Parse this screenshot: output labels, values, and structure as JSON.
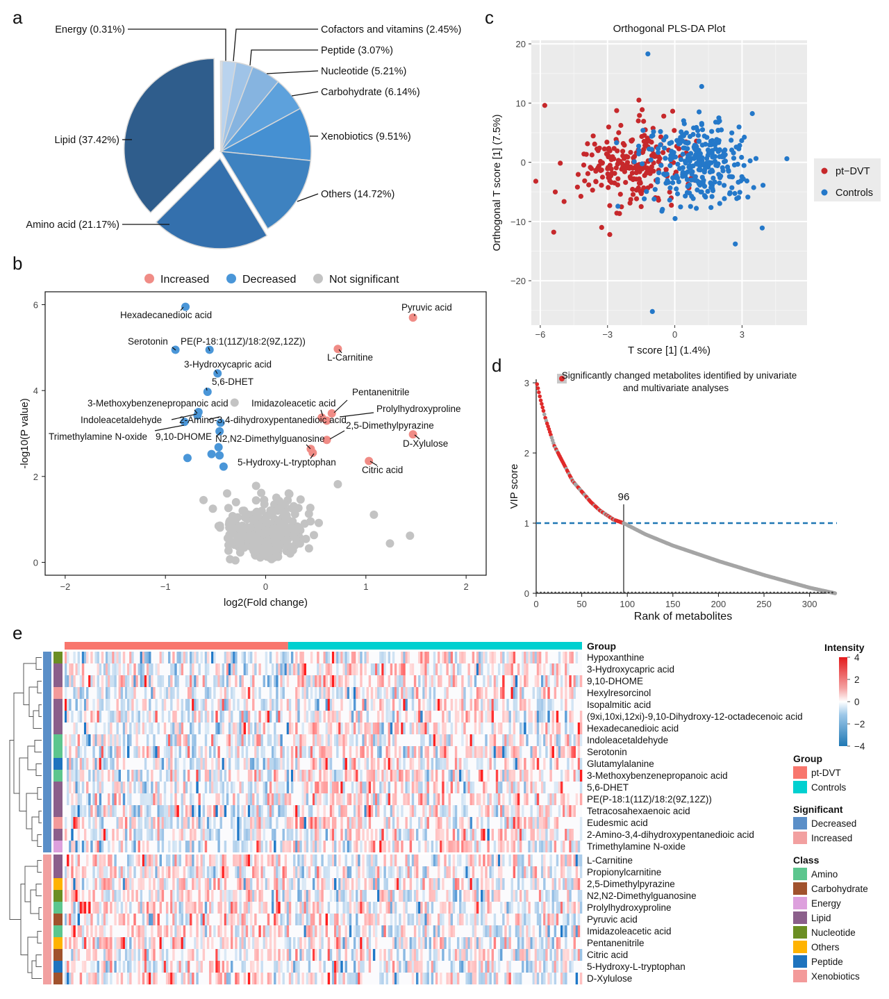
{
  "panel_letters": [
    "a",
    "b",
    "c",
    "d",
    "e"
  ],
  "chart_data": [
    {
      "panel": "a",
      "type": "pie",
      "slices": [
        {
          "label": "Lipid (37.42%)",
          "value": 37.42,
          "color": "#2f5d8c",
          "exploded": true
        },
        {
          "label": "Amino acid (21.17%)",
          "value": 21.17,
          "color": "#3470ad",
          "exploded": true
        },
        {
          "label": "Others (14.72%)",
          "value": 14.72,
          "color": "#3e82c0"
        },
        {
          "label": "Xenobiotics (9.51%)",
          "value": 9.51,
          "color": "#4590d2"
        },
        {
          "label": "Carbohydrate (6.14%)",
          "value": 6.14,
          "color": "#5da1dc"
        },
        {
          "label": "Nucleotide (5.21%)",
          "value": 5.21,
          "color": "#86b4e0"
        },
        {
          "label": "Peptide (3.07%)",
          "value": 3.07,
          "color": "#9fc3e7"
        },
        {
          "label": "Cofactors and vitamins (2.45%)",
          "value": 2.45,
          "color": "#b9d3ee"
        },
        {
          "label": "Energy (0.31%)",
          "value": 0.31,
          "color": "#d5e4f5"
        }
      ]
    },
    {
      "panel": "b",
      "type": "scatter",
      "xlabel": "log2(Fold change)",
      "ylabel": "-log10(P value)",
      "xlim": [
        -2.2,
        2.2
      ],
      "ylim": [
        -0.3,
        6.3
      ],
      "xticks": [
        -2,
        -1,
        0,
        1,
        2
      ],
      "yticks": [
        0,
        2,
        4,
        6
      ],
      "legend": [
        {
          "name": "Increased",
          "color": "#f08c86"
        },
        {
          "name": "Decreased",
          "color": "#4a96d8"
        },
        {
          "name": "Not significant",
          "color": "#c3c3c3"
        }
      ],
      "points": [
        {
          "name": "Hexadecanedioic acid",
          "x": -0.8,
          "y": 5.95,
          "group": "Decreased"
        },
        {
          "name": "Serotonin",
          "x": -0.9,
          "y": 4.95,
          "group": "Decreased"
        },
        {
          "name": "PE(P-18:1(11Z)/18:2(9Z,12Z))",
          "x": -0.56,
          "y": 4.95,
          "group": "Decreased"
        },
        {
          "name": "3-Hydroxycapric acid",
          "x": -0.48,
          "y": 4.4,
          "group": "Decreased"
        },
        {
          "name": "5,6-DHET",
          "x": -0.58,
          "y": 3.97,
          "group": "Decreased"
        },
        {
          "name": "3-Methoxybenzenepropanoic acid",
          "x": -0.67,
          "y": 3.5,
          "group": "Decreased"
        },
        {
          "name": "Indoleacetaldehyde",
          "x": -0.68,
          "y": 3.42,
          "group": "Decreased"
        },
        {
          "name": "2-Amino-3,4-dihydroxypentanedioic acid",
          "x": -0.45,
          "y": 3.25,
          "group": "Decreased"
        },
        {
          "name": "Trimethylamine N-oxide",
          "x": -0.81,
          "y": 3.27,
          "group": "Decreased"
        },
        {
          "name": "9,10-DHOME",
          "x": -0.46,
          "y": 3.05,
          "group": "Decreased"
        },
        {
          "name": "",
          "x": -0.47,
          "y": 2.68,
          "group": "Decreased"
        },
        {
          "name": "",
          "x": -0.54,
          "y": 2.52,
          "group": "Decreased"
        },
        {
          "name": "",
          "x": -0.46,
          "y": 2.49,
          "group": "Decreased"
        },
        {
          "name": "",
          "x": -0.78,
          "y": 2.43,
          "group": "Decreased"
        },
        {
          "name": "",
          "x": -0.42,
          "y": 2.23,
          "group": "Decreased"
        },
        {
          "name": "Pyruvic acid",
          "x": 1.47,
          "y": 5.7,
          "group": "Increased"
        },
        {
          "name": "L-Carnitine",
          "x": 0.72,
          "y": 4.97,
          "group": "Increased"
        },
        {
          "name": "Pentanenitrile",
          "x": 0.66,
          "y": 3.47,
          "group": "Increased"
        },
        {
          "name": "Imidazoleacetic acid",
          "x": 0.56,
          "y": 3.37,
          "group": "Increased"
        },
        {
          "name": "Prolylhydroxyproline",
          "x": 0.61,
          "y": 3.3,
          "group": "Increased"
        },
        {
          "name": "2,5-Dimethylpyrazine",
          "x": 0.61,
          "y": 2.85,
          "group": "Increased"
        },
        {
          "name": "D-Xylulose",
          "x": 1.47,
          "y": 2.98,
          "group": "Increased"
        },
        {
          "name": "N2,N2-Dimethylguanosine",
          "x": 0.45,
          "y": 2.64,
          "group": "Increased"
        },
        {
          "name": "5-Hydroxy-L-tryptophan",
          "x": 0.47,
          "y": 2.55,
          "group": "Increased"
        },
        {
          "name": "Citric acid",
          "x": 1.03,
          "y": 2.36,
          "group": "Increased"
        }
      ],
      "not_significant_count": 300,
      "not_significant_extremes": [
        {
          "x": 1.08,
          "y": 1.11
        },
        {
          "x": 1.24,
          "y": 0.44
        },
        {
          "x": 1.44,
          "y": 0.62
        },
        {
          "x": -0.31,
          "y": 3.72
        },
        {
          "x": 0.72,
          "y": 1.82
        },
        {
          "x": -0.62,
          "y": 1.45
        }
      ]
    },
    {
      "panel": "c",
      "type": "scatter",
      "title": "Orthogonal PLS-DA Plot",
      "xlabel": "T score [1] (1.4%)",
      "ylabel": "Orthogonal T score [1] (7.5%)",
      "xlim": [
        -6.4,
        5.9
      ],
      "ylim": [
        -27.5,
        20.6
      ],
      "xticks": [
        -6,
        -3,
        0,
        3
      ],
      "yticks": [
        -20,
        -10,
        0,
        10,
        20
      ],
      "legend": [
        {
          "name": "pt−DVT",
          "color": "#c6282b"
        },
        {
          "name": "Controls",
          "color": "#2478c9"
        }
      ],
      "series_counts": {
        "pt−DVT": 230,
        "Controls": 290
      },
      "notable_points": [
        {
          "group": "Controls",
          "x": -1.2,
          "y": 18.3
        },
        {
          "group": "Controls",
          "x": 1.2,
          "y": 12.8
        },
        {
          "group": "Controls",
          "x": -1.0,
          "y": -25.2
        },
        {
          "group": "Controls",
          "x": 5.0,
          "y": 0.6
        },
        {
          "group": "Controls",
          "x": 3.9,
          "y": -11.1
        },
        {
          "group": "Controls",
          "x": 2.7,
          "y": -13.8
        },
        {
          "group": "pt−DVT",
          "x": -5.8,
          "y": 9.6
        },
        {
          "group": "pt−DVT",
          "x": -6.2,
          "y": -3.2
        },
        {
          "group": "pt−DVT",
          "x": -5.4,
          "y": -11.8
        },
        {
          "group": "pt−DVT",
          "x": -2.9,
          "y": -12.2
        },
        {
          "group": "pt−DVT",
          "x": -1.6,
          "y": 10.5
        }
      ]
    },
    {
      "panel": "d",
      "type": "scatter",
      "xlabel": "Rank of metabolites",
      "ylabel": "VIP score",
      "xlim": [
        0,
        330
      ],
      "ylim": [
        0,
        3.05
      ],
      "xticks": [
        0,
        50,
        100,
        150,
        200,
        250,
        300
      ],
      "yticks": [
        0,
        1,
        2,
        3
      ],
      "n": 328,
      "threshold": 1,
      "cutoff_rank": 96,
      "cutoff_label": "96",
      "legend": [
        {
          "name": "Significantly changed metabolites identified by univariate and multivariate analyses",
          "color": "#e02a2a"
        }
      ],
      "curve_anchor_points": [
        {
          "x": 1,
          "y": 2.98
        },
        {
          "x": 5,
          "y": 2.75
        },
        {
          "x": 10,
          "y": 2.5
        },
        {
          "x": 20,
          "y": 2.1
        },
        {
          "x": 30,
          "y": 1.85
        },
        {
          "x": 40,
          "y": 1.6
        },
        {
          "x": 50,
          "y": 1.45
        },
        {
          "x": 60,
          "y": 1.3
        },
        {
          "x": 70,
          "y": 1.18
        },
        {
          "x": 85,
          "y": 1.05
        },
        {
          "x": 96,
          "y": 1.0
        },
        {
          "x": 120,
          "y": 0.84
        },
        {
          "x": 150,
          "y": 0.68
        },
        {
          "x": 200,
          "y": 0.46
        },
        {
          "x": 250,
          "y": 0.26
        },
        {
          "x": 300,
          "y": 0.08
        },
        {
          "x": 328,
          "y": 0.0
        }
      ]
    },
    {
      "panel": "e",
      "type": "heatmap",
      "rows": [
        "Hypoxanthine",
        "3-Hydroxycapric acid",
        "9,10-DHOME",
        "Hexylresorcinol",
        "Isopalmitic acid",
        "(9xi,10xi,12xi)-9,10-Dihydroxy-12-octadecenoic acid",
        "Hexadecanedioic acid",
        "Indoleacetaldehyde",
        "Serotonin",
        "Glutamylalanine",
        "3-Methoxybenzenepropanoic acid",
        "5,6-DHET",
        "PE(P-18:1(11Z)/18:2(9Z,12Z))",
        "Tetracosahexaenoic acid",
        "Eudesmic acid",
        "2-Amino-3,4-dihydroxypentanedioic acid",
        "Trimethylamine N-oxide",
        "L-Carnitine",
        "Propionylcarnitine",
        "2,5-Dimethylpyrazine",
        "N2,N2-Dimethylguanosine",
        "Prolylhydroxyproline",
        "Pyruvic acid",
        "Imidazoleacetic acid",
        "Pentanenitrile",
        "Citric acid",
        "5-Hydroxy-L-tryptophan",
        "D-Xylulose"
      ],
      "row_significant": [
        "Decreased",
        "Decreased",
        "Decreased",
        "Decreased",
        "Decreased",
        "Decreased",
        "Decreased",
        "Decreased",
        "Decreased",
        "Decreased",
        "Decreased",
        "Decreased",
        "Decreased",
        "Decreased",
        "Decreased",
        "Decreased",
        "Decreased",
        "Increased",
        "Increased",
        "Increased",
        "Increased",
        "Increased",
        "Increased",
        "Increased",
        "Increased",
        "Increased",
        "Increased",
        "Increased"
      ],
      "row_class": [
        "Nucleotide",
        "Lipid",
        "Lipid",
        "Xenobiotics",
        "Lipid",
        "Lipid",
        "Lipid",
        "Amino",
        "Amino",
        "Peptide",
        "Amino",
        "Lipid",
        "Lipid",
        "Lipid",
        "Xenobiotics",
        "Lipid",
        "Energy",
        "Lipid",
        "Lipid",
        "Others",
        "Nucleotide",
        "Amino",
        "Carbohydrate",
        "Amino",
        "Others",
        "Carbohydrate",
        "Peptide",
        "Carbohydrate"
      ],
      "column_groups": [
        {
          "name": "pt-DVT",
          "fraction": 0.432
        },
        {
          "name": "Controls",
          "fraction": 0.568
        }
      ],
      "intensity_range": [
        -4,
        4
      ],
      "intensity_ticks": [
        4,
        2,
        0,
        -2,
        -4
      ],
      "legend_titles": {
        "column_annotation": "Group",
        "intensity": "Intensity",
        "group": "Group",
        "significant": "Significant",
        "class": "Class"
      },
      "group_legend": [
        {
          "name": "pt-DVT",
          "color": "#f8766d"
        },
        {
          "name": "Controls",
          "color": "#00d0d0"
        }
      ],
      "significant_legend": [
        {
          "name": "Decreased",
          "color": "#5b8fc8"
        },
        {
          "name": "Increased",
          "color": "#f2a0a0"
        }
      ],
      "class_legend": [
        {
          "name": "Amino",
          "color": "#5cc68e"
        },
        {
          "name": "Carbohydrate",
          "color": "#a0522d"
        },
        {
          "name": "Energy",
          "color": "#dda0dd"
        },
        {
          "name": "Lipid",
          "color": "#8b5f8b"
        },
        {
          "name": "Nucleotide",
          "color": "#6b8e23"
        },
        {
          "name": "Others",
          "color": "#ffb300"
        },
        {
          "name": "Peptide",
          "color": "#1e73be"
        },
        {
          "name": "Xenobiotics",
          "color": "#f39a9a"
        }
      ]
    }
  ]
}
